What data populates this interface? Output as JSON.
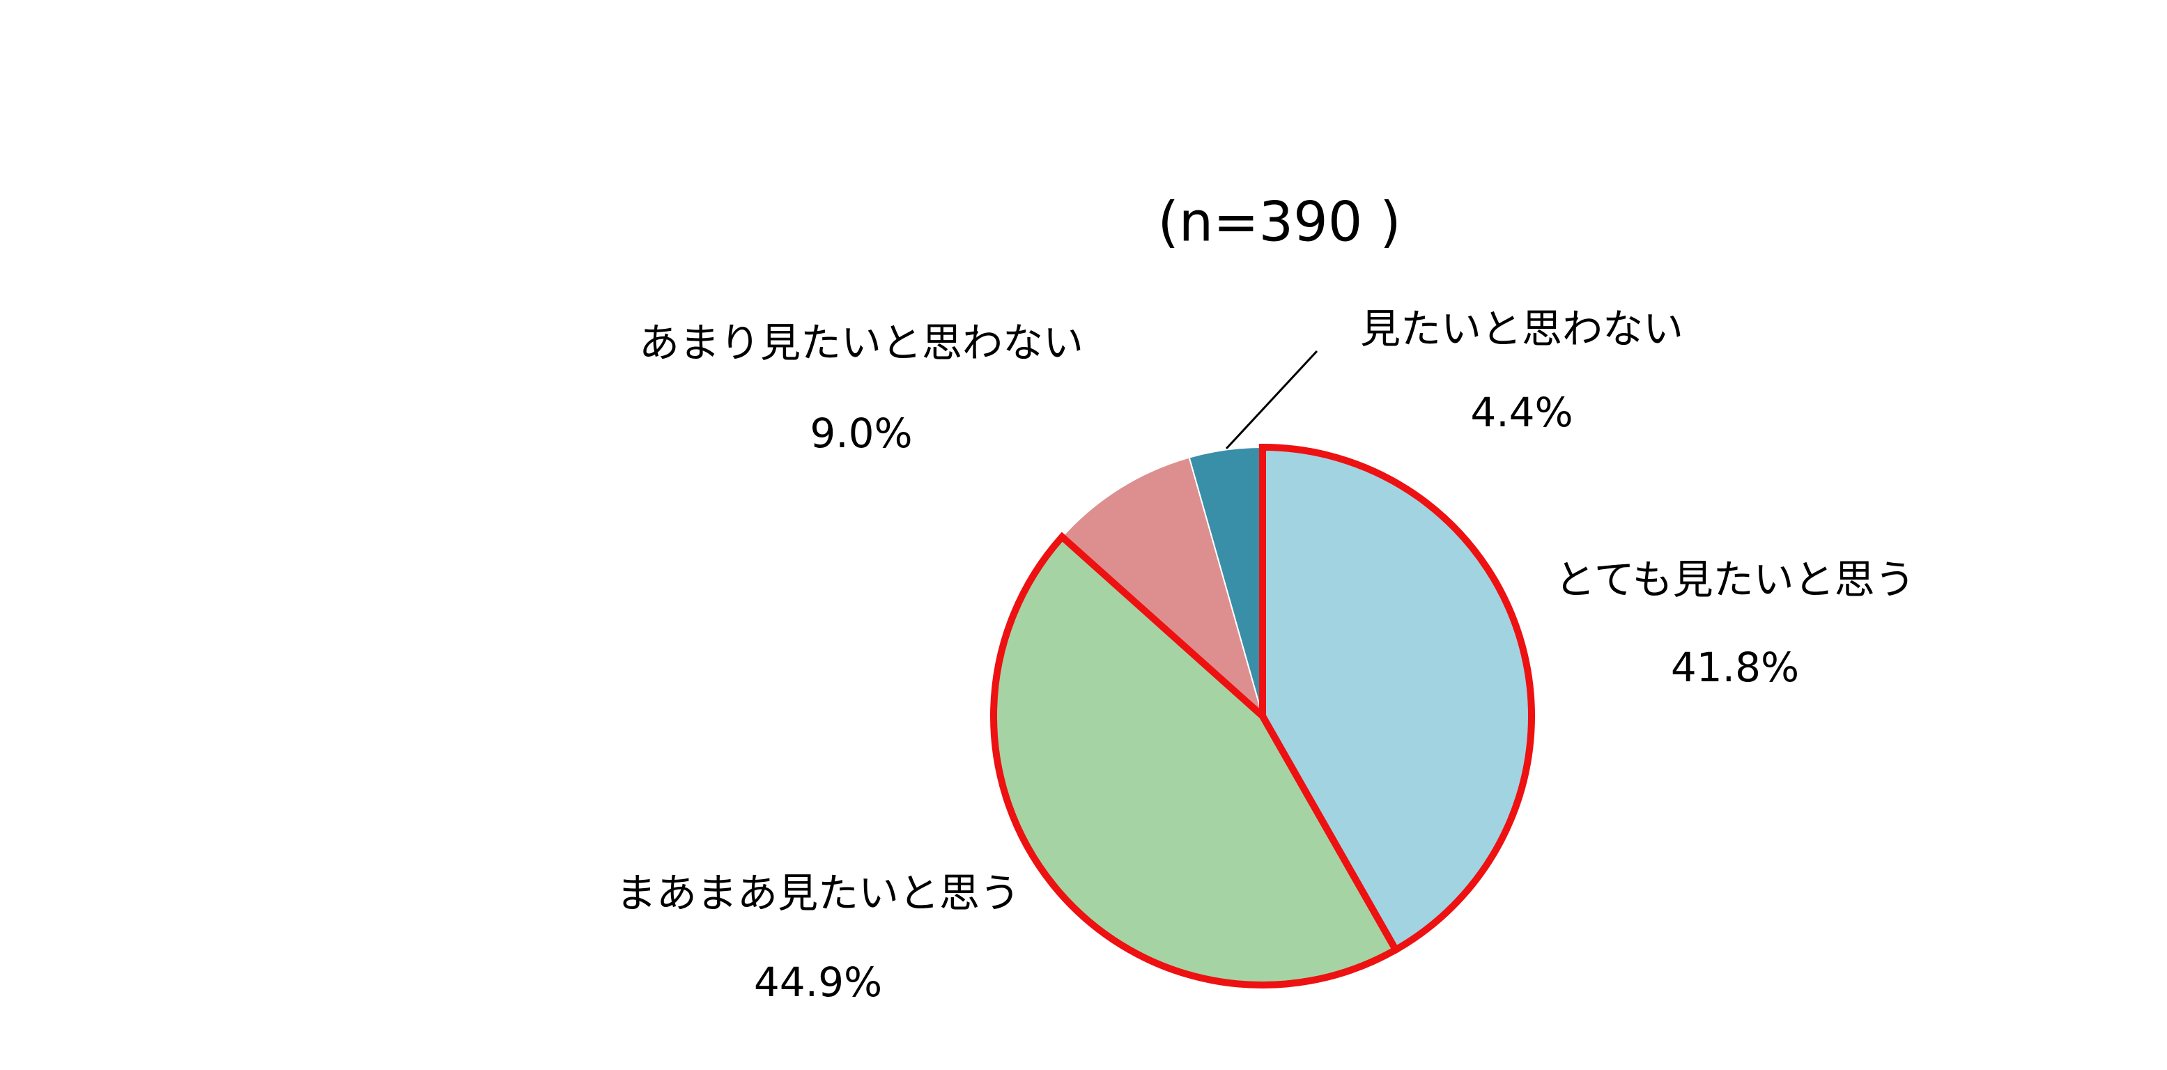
{
  "chart_data": {
    "type": "pie",
    "title": "(n=390 )",
    "categories": [
      "とても見たいと思う",
      "まあまあ見たいと思う",
      "あまり見たいと思わない",
      "見たいと思わない"
    ],
    "values": [
      41.8,
      44.9,
      9.0,
      4.4
    ],
    "value_labels": [
      "41.8%",
      "44.9%",
      "9.0%",
      "4.4%"
    ],
    "colors": [
      "#a2d3e0",
      "#a6d3a4",
      "#dd8f8f",
      "#3a8fa8"
    ],
    "highlight": {
      "indices": [
        0,
        1
      ],
      "color": "#ee1111"
    }
  }
}
